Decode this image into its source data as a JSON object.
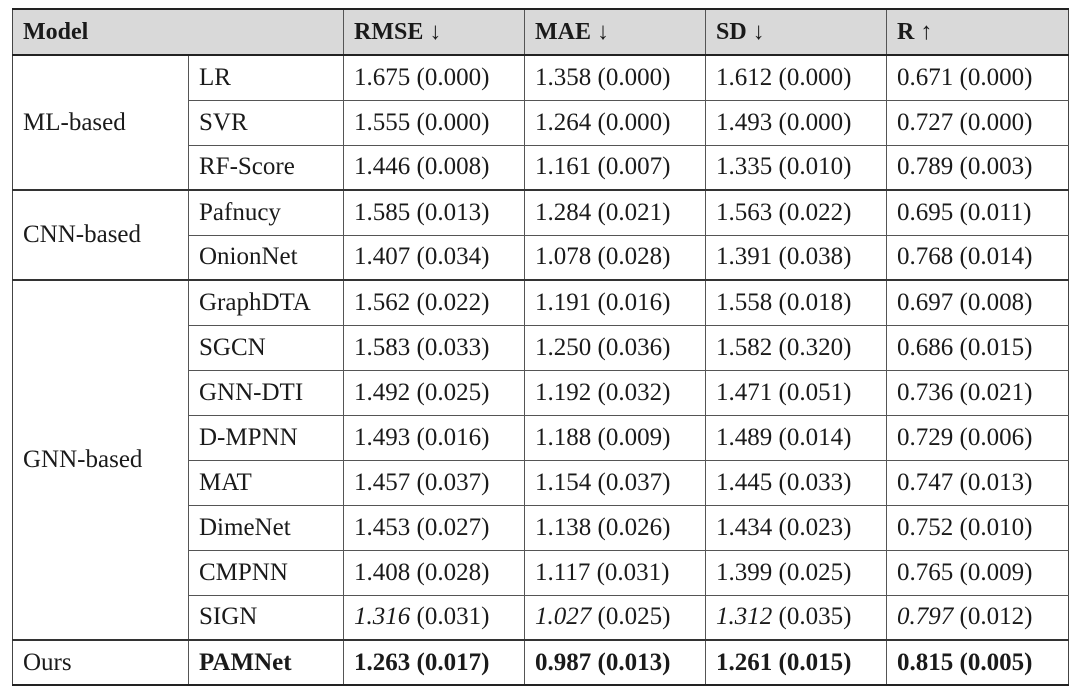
{
  "table": {
    "headers": {
      "model": "Model",
      "rmse": "RMSE ↓",
      "mae": "MAE ↓",
      "sd": "SD ↓",
      "r": "R ↑"
    },
    "groups": [
      {
        "name": "ML-based",
        "rows": [
          {
            "model": "LR",
            "rmse": "1.675 (0.000)",
            "mae": "1.358 (0.000)",
            "sd": "1.612 (0.000)",
            "r": "0.671 (0.000)"
          },
          {
            "model": "SVR",
            "rmse": "1.555 (0.000)",
            "mae": "1.264 (0.000)",
            "sd": "1.493 (0.000)",
            "r": "0.727 (0.000)"
          },
          {
            "model": "RF-Score",
            "rmse": "1.446 (0.008)",
            "mae": "1.161 (0.007)",
            "sd": "1.335 (0.010)",
            "r": "0.789 (0.003)"
          }
        ]
      },
      {
        "name": "CNN-based",
        "rows": [
          {
            "model": "Pafnucy",
            "rmse": "1.585 (0.013)",
            "mae": "1.284 (0.021)",
            "sd": "1.563 (0.022)",
            "r": "0.695 (0.011)"
          },
          {
            "model": "OnionNet",
            "rmse": "1.407 (0.034)",
            "mae": "1.078 (0.028)",
            "sd": "1.391 (0.038)",
            "r": "0.768 (0.014)"
          }
        ]
      },
      {
        "name": "GNN-based",
        "rows": [
          {
            "model": "GraphDTA",
            "rmse": "1.562 (0.022)",
            "mae": "1.191 (0.016)",
            "sd": "1.558 (0.018)",
            "r": "0.697 (0.008)"
          },
          {
            "model": "SGCN",
            "rmse": "1.583 (0.033)",
            "mae": "1.250 (0.036)",
            "sd": "1.582 (0.320)",
            "r": "0.686 (0.015)"
          },
          {
            "model": "GNN-DTI",
            "rmse": "1.492 (0.025)",
            "mae": "1.192 (0.032)",
            "sd": "1.471 (0.051)",
            "r": "0.736 (0.021)"
          },
          {
            "model": "D-MPNN",
            "rmse": "1.493 (0.016)",
            "mae": "1.188 (0.009)",
            "sd": "1.489 (0.014)",
            "r": "0.729 (0.006)"
          },
          {
            "model": "MAT",
            "rmse": "1.457 (0.037)",
            "mae": "1.154 (0.037)",
            "sd": "1.445 (0.033)",
            "r": "0.747 (0.013)"
          },
          {
            "model": "DimeNet",
            "rmse": "1.453 (0.027)",
            "mae": "1.138 (0.026)",
            "sd": "1.434 (0.023)",
            "r": "0.752 (0.010)"
          },
          {
            "model": "CMPNN",
            "rmse": "1.408 (0.028)",
            "mae": "1.117 (0.031)",
            "sd": "1.399 (0.025)",
            "r": "0.765 (0.009)"
          },
          {
            "model": "SIGN",
            "rmse_main": "1.316",
            "rmse_sd": " (0.031)",
            "mae_main": "1.027",
            "mae_sd": " (0.025)",
            "sd_main": "1.312",
            "sd_sd": " (0.035)",
            "r_main": "0.797",
            "r_sd": " (0.012)"
          }
        ]
      },
      {
        "name": "Ours",
        "rows": [
          {
            "model": "PAMNet",
            "rmse": "1.263 (0.017)",
            "mae": "0.987 (0.013)",
            "sd": "1.261 (0.015)",
            "r": "0.815 (0.005)"
          }
        ]
      }
    ]
  }
}
